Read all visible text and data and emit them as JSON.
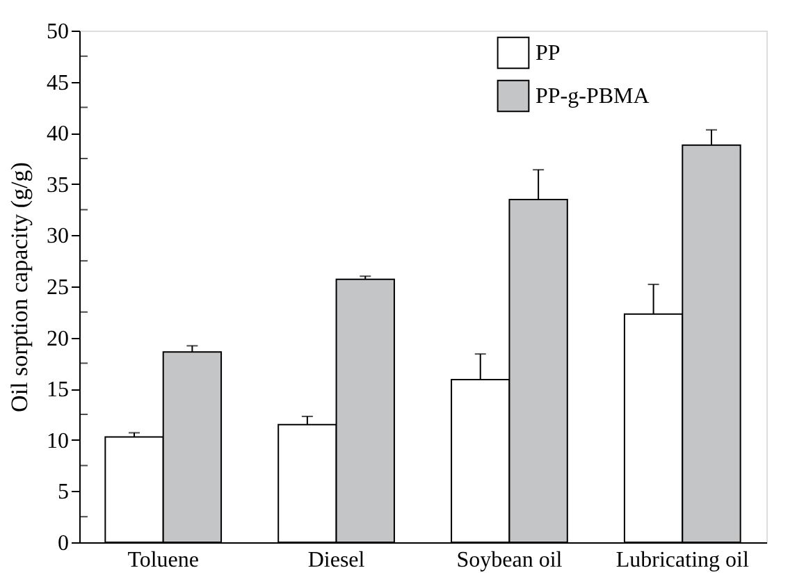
{
  "chart_data": {
    "type": "bar",
    "ylabel": "Oil sorption capacity (g/g)",
    "categories": [
      "Toluene",
      "Diesel",
      "Soybean oil",
      "Lubricating oil"
    ],
    "series": [
      {
        "name": "PP",
        "color": "#ffffff",
        "values": [
          10.3,
          11.5,
          15.9,
          22.3
        ],
        "errors": [
          0.4,
          0.8,
          2.5,
          2.9
        ]
      },
      {
        "name": "PP-g-PBMA",
        "color": "#c4c5c7",
        "values": [
          18.6,
          25.7,
          33.5,
          38.8
        ],
        "errors": [
          0.6,
          0.3,
          2.9,
          1.5
        ]
      }
    ],
    "ylim": [
      0,
      50
    ],
    "yticks": [
      0,
      5,
      10,
      15,
      20,
      25,
      30,
      35,
      40,
      45,
      50
    ],
    "grid": false,
    "legend": "top right"
  }
}
